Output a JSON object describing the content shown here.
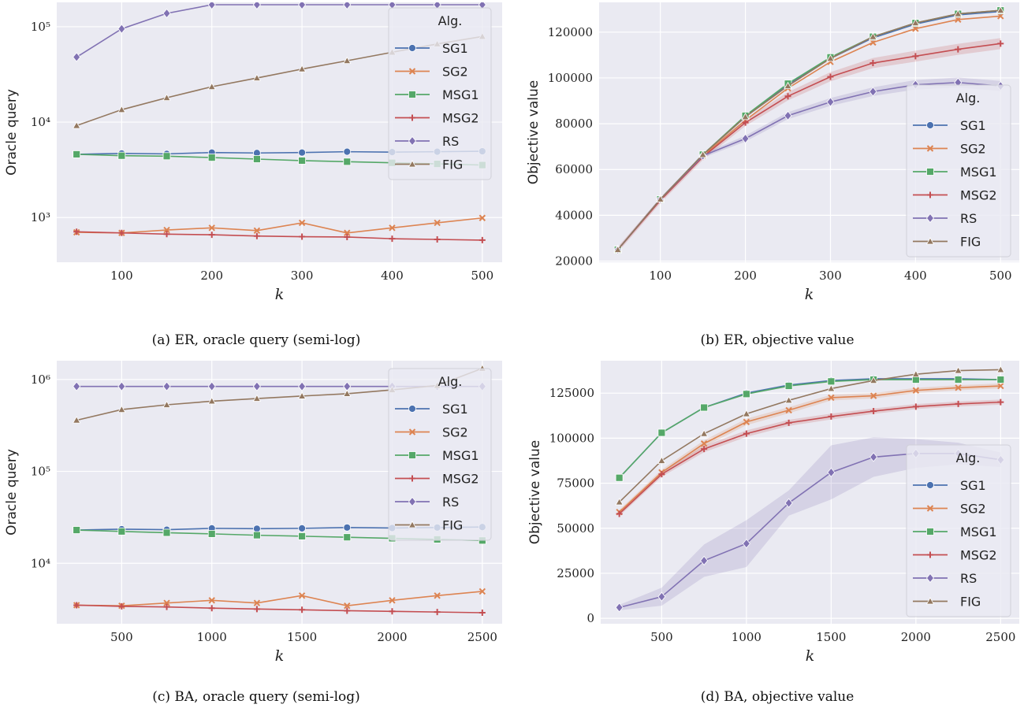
{
  "colors": {
    "SG1": "#4c72b0",
    "SG2": "#dd8452",
    "MSG1": "#55a868",
    "MSG2": "#c44e52",
    "RS": "#8172b3",
    "FIG": "#937860",
    "panel_bg": "#eaeaf2",
    "grid": "#ffffff"
  },
  "chart_data": [
    {
      "id": "a",
      "type": "line",
      "caption": "(a) ER, oracle query (semi-log)",
      "xlabel": "k",
      "ylabel": "Oracle query",
      "yscale": "log",
      "xlim": [
        28,
        522
      ],
      "ylim": [
        340,
        180000
      ],
      "xticks": [
        100,
        200,
        300,
        400,
        500
      ],
      "yticks": [
        {
          "value": 1000,
          "label": "10³"
        },
        {
          "value": 10000,
          "label": "10⁴"
        },
        {
          "value": 100000,
          "label": "10⁵"
        }
      ],
      "legend_title": "Alg.",
      "legend_position": "top-right",
      "x": [
        50,
        100,
        150,
        200,
        250,
        300,
        350,
        400,
        450,
        500
      ],
      "series": [
        {
          "name": "SG1",
          "marker": "circle",
          "values": [
            4600,
            4700,
            4650,
            4800,
            4750,
            4800,
            4900,
            4850,
            4900,
            4950
          ]
        },
        {
          "name": "SG2",
          "marker": "x",
          "values": [
            700,
            690,
            740,
            780,
            730,
            880,
            690,
            780,
            880,
            990
          ]
        },
        {
          "name": "MSG1",
          "marker": "square",
          "values": [
            4600,
            4450,
            4400,
            4250,
            4100,
            3950,
            3850,
            3750,
            3650,
            3550
          ]
        },
        {
          "name": "MSG2",
          "marker": "plus",
          "values": [
            710,
            690,
            670,
            660,
            640,
            630,
            625,
            600,
            590,
            580
          ]
        },
        {
          "name": "RS",
          "marker": "diamond",
          "values": [
            48000,
            95000,
            138000,
            170000,
            170000,
            170000,
            170000,
            170000,
            170000,
            170000
          ]
        },
        {
          "name": "FIG",
          "marker": "triangle",
          "values": [
            9200,
            13500,
            18000,
            23500,
            29000,
            36000,
            44000,
            54000,
            66000,
            79000
          ]
        }
      ]
    },
    {
      "id": "b",
      "type": "line",
      "caption": "(b) ER, objective value",
      "xlabel": "k",
      "ylabel": "Objective value",
      "yscale": "linear",
      "xlim": [
        28,
        522
      ],
      "ylim": [
        19500,
        133000
      ],
      "xticks": [
        100,
        200,
        300,
        400,
        500
      ],
      "yticks": [
        {
          "value": 20000,
          "label": "20000"
        },
        {
          "value": 40000,
          "label": "40000"
        },
        {
          "value": 60000,
          "label": "60000"
        },
        {
          "value": 80000,
          "label": "80000"
        },
        {
          "value": 100000,
          "label": "100000"
        },
        {
          "value": 120000,
          "label": "120000"
        }
      ],
      "legend_title": "Alg.",
      "legend_position": "lower-right",
      "x": [
        50,
        100,
        150,
        200,
        250,
        300,
        350,
        400,
        450,
        500
      ],
      "series": [
        {
          "name": "SG1",
          "marker": "circle",
          "values": [
            25000,
            47000,
            66500,
            83000,
            97000,
            108500,
            117500,
            123500,
            127500,
            129000
          ]
        },
        {
          "name": "SG2",
          "marker": "x",
          "values": [
            25000,
            47000,
            66000,
            81500,
            95500,
            107000,
            115500,
            121500,
            125500,
            127000
          ]
        },
        {
          "name": "MSG1",
          "marker": "square",
          "values": [
            25000,
            47000,
            66500,
            83500,
            97500,
            109000,
            118000,
            124000,
            128000,
            129500
          ]
        },
        {
          "name": "MSG2",
          "marker": "plus",
          "values": [
            25000,
            46500,
            65500,
            80500,
            92000,
            100500,
            106500,
            109500,
            112500,
            115000
          ],
          "band": [
            1200,
            1200,
            1300,
            1500,
            1800,
            2000,
            2200,
            2400,
            2400,
            2400
          ]
        },
        {
          "name": "RS",
          "marker": "diamond",
          "values": [
            25000,
            47000,
            66000,
            73500,
            83500,
            89500,
            94000,
            97000,
            98000,
            96500
          ],
          "band": [
            600,
            700,
            900,
            1300,
            1500,
            1700,
            1900,
            2100,
            2200,
            2200
          ]
        },
        {
          "name": "FIG",
          "marker": "triangle",
          "values": [
            25000,
            47000,
            66500,
            83000,
            96500,
            108500,
            118000,
            124000,
            128000,
            129500
          ]
        }
      ]
    },
    {
      "id": "c",
      "type": "line",
      "caption": "(c) BA, oracle query (semi-log)",
      "xlabel": "k",
      "ylabel": "Oracle query",
      "yscale": "log",
      "xlim": [
        140,
        2610
      ],
      "ylim": [
        2200,
        1600000
      ],
      "xticks": [
        500,
        1000,
        1500,
        2000,
        2500
      ],
      "yticks": [
        {
          "value": 10000,
          "label": "10⁴"
        },
        {
          "value": 100000,
          "label": "10⁵"
        },
        {
          "value": 1000000,
          "label": "10⁶"
        }
      ],
      "legend_title": "Alg.",
      "legend_position": "top-right",
      "x": [
        250,
        500,
        750,
        1000,
        1250,
        1500,
        1750,
        2000,
        2250,
        2500
      ],
      "series": [
        {
          "name": "SG1",
          "marker": "circle",
          "values": [
            23000,
            23500,
            23200,
            24000,
            23800,
            24000,
            24500,
            24200,
            24500,
            24800
          ]
        },
        {
          "name": "SG2",
          "marker": "x",
          "values": [
            3500,
            3450,
            3700,
            3950,
            3700,
            4450,
            3450,
            3950,
            4450,
            4950
          ]
        },
        {
          "name": "MSG1",
          "marker": "square",
          "values": [
            23000,
            22200,
            21500,
            20900,
            20200,
            19700,
            19200,
            18700,
            18200,
            17700
          ]
        },
        {
          "name": "MSG2",
          "marker": "plus",
          "values": [
            3500,
            3400,
            3350,
            3250,
            3180,
            3120,
            3050,
            3000,
            2950,
            2900
          ]
        },
        {
          "name": "RS",
          "marker": "diamond",
          "values": [
            840000,
            840000,
            840000,
            840000,
            840000,
            840000,
            840000,
            840000,
            840000,
            840000
          ]
        },
        {
          "name": "FIG",
          "marker": "triangle",
          "values": [
            360000,
            470000,
            530000,
            580000,
            620000,
            660000,
            700000,
            770000,
            860000,
            1320000
          ]
        }
      ]
    },
    {
      "id": "d",
      "type": "line",
      "caption": "(d) BA, objective value",
      "xlabel": "k",
      "ylabel": "Objective value",
      "yscale": "linear",
      "xlim": [
        140,
        2610
      ],
      "ylim": [
        -3000,
        143000
      ],
      "xticks": [
        500,
        1000,
        1500,
        2000,
        2500
      ],
      "yticks": [
        {
          "value": 0,
          "label": "0"
        },
        {
          "value": 25000,
          "label": "25000"
        },
        {
          "value": 50000,
          "label": "50000"
        },
        {
          "value": 75000,
          "label": "75000"
        },
        {
          "value": 100000,
          "label": "100000"
        },
        {
          "value": 125000,
          "label": "125000"
        }
      ],
      "legend_title": "Alg.",
      "legend_position": "lower-right",
      "x": [
        250,
        500,
        750,
        1000,
        1250,
        1500,
        1750,
        2000,
        2250,
        2500
      ],
      "series": [
        {
          "name": "SG1",
          "marker": "circle",
          "values": [
            78000,
            103000,
            117000,
            125000,
            129500,
            132000,
            133000,
            133000,
            133000,
            132500
          ]
        },
        {
          "name": "SG2",
          "marker": "x",
          "values": [
            59000,
            81000,
            97000,
            109000,
            115500,
            122500,
            123500,
            126500,
            128000,
            129000
          ],
          "band": [
            1200,
            1500,
            1800,
            1800,
            1700,
            1600,
            1500,
            1400,
            1400,
            1400
          ]
        },
        {
          "name": "MSG1",
          "marker": "square",
          "values": [
            78000,
            103000,
            117000,
            124500,
            129000,
            131500,
            132500,
            132500,
            132500,
            132500
          ]
        },
        {
          "name": "MSG2",
          "marker": "plus",
          "values": [
            58000,
            80000,
            94000,
            102500,
            108500,
            112000,
            115000,
            117500,
            119000,
            120000
          ],
          "band": [
            1200,
            1500,
            1800,
            1800,
            1700,
            1600,
            1500,
            1400,
            1400,
            1400
          ]
        },
        {
          "name": "RS",
          "marker": "diamond",
          "values": [
            6000,
            12000,
            32000,
            41500,
            64000,
            81000,
            89500,
            91500,
            91500,
            88000
          ],
          "band": [
            1500,
            5000,
            9000,
            13000,
            7000,
            15000,
            11000,
            8000,
            6000,
            4000
          ]
        },
        {
          "name": "FIG",
          "marker": "triangle",
          "values": [
            64500,
            87500,
            102500,
            113500,
            121000,
            127500,
            132000,
            135500,
            137500,
            138000
          ]
        }
      ]
    }
  ]
}
